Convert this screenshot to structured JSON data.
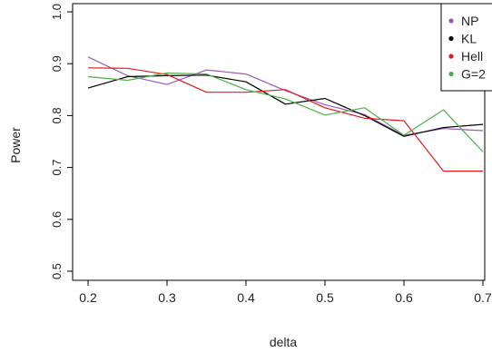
{
  "chart_data": {
    "type": "line",
    "title": "",
    "xlabel": "delta",
    "ylabel": "Power",
    "xlim": [
      0.2,
      0.7
    ],
    "ylim": [
      0.5,
      1.0
    ],
    "x_ticks": [
      "0.2",
      "0.3",
      "0.4",
      "0.5",
      "0.6",
      "0.7"
    ],
    "y_ticks": [
      "0.5",
      "0.6",
      "0.7",
      "0.8",
      "0.9",
      "1.0"
    ],
    "grid": false,
    "legend_position": "top-right",
    "x": [
      0.2,
      0.25,
      0.3,
      0.35,
      0.4,
      0.45,
      0.5,
      0.55,
      0.6,
      0.65,
      0.7
    ],
    "series": [
      {
        "name": "NP",
        "color": "#9b59b6",
        "values": [
          0.913,
          0.877,
          0.86,
          0.888,
          0.88,
          0.848,
          0.821,
          0.802,
          0.762,
          0.775,
          0.771
        ]
      },
      {
        "name": "KL",
        "color": "#000000",
        "values": [
          0.853,
          0.875,
          0.877,
          0.878,
          0.865,
          0.822,
          0.833,
          0.8,
          0.76,
          0.777,
          0.783
        ]
      },
      {
        "name": "Hell",
        "color": "#e41a1c",
        "values": [
          0.892,
          0.891,
          0.879,
          0.845,
          0.845,
          0.85,
          0.815,
          0.795,
          0.79,
          0.693,
          0.693
        ]
      },
      {
        "name": "G=2",
        "color": "#4daf4a",
        "values": [
          0.875,
          0.868,
          0.882,
          0.88,
          0.85,
          0.832,
          0.801,
          0.815,
          0.762,
          0.811,
          0.73
        ]
      }
    ]
  }
}
